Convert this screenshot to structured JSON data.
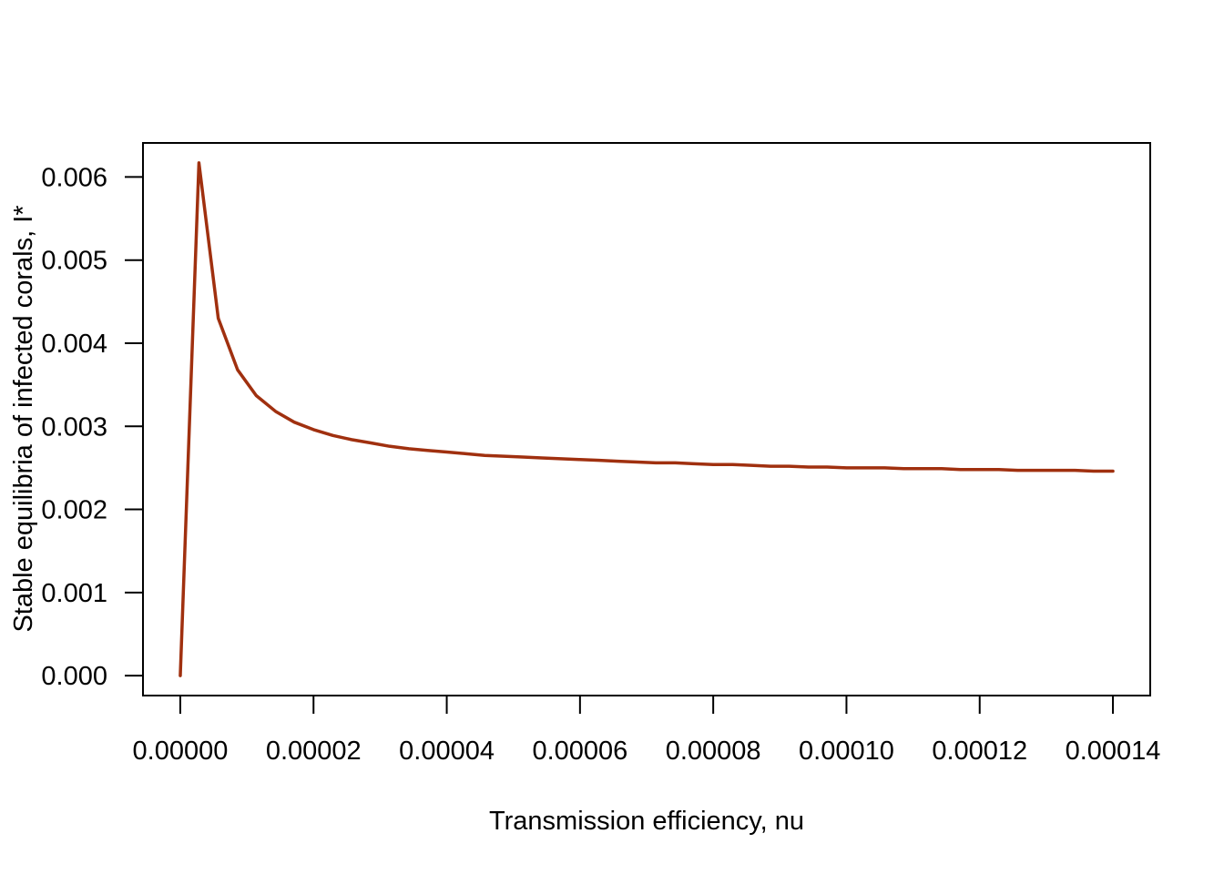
{
  "chart_data": {
    "type": "line",
    "title": "",
    "xlabel": "Transmission efficiency, nu",
    "ylabel": "Stable equilibria of infected corals, I*",
    "xlim": [
      -5.6e-06,
      0.0001456
    ],
    "ylim": [
      -0.00024,
      0.00641
    ],
    "x_ticks": [
      0,
      2e-05,
      4e-05,
      6e-05,
      8e-05,
      0.0001,
      0.00012,
      0.00014
    ],
    "x_tick_labels": [
      "0.00000",
      "0.00002",
      "0.00004",
      "0.00006",
      "0.00008",
      "0.00010",
      "0.00012",
      "0.00014"
    ],
    "y_ticks": [
      0,
      0.001,
      0.002,
      0.003,
      0.004,
      0.005,
      0.006
    ],
    "y_tick_labels": [
      "0.000",
      "0.001",
      "0.002",
      "0.003",
      "0.004",
      "0.005",
      "0.006"
    ],
    "grid": false,
    "legend": "none",
    "series": [
      {
        "color": "#a0300f",
        "x": [
          0,
          2.8e-06,
          5.7e-06,
          8.6e-06,
          1.14e-05,
          1.43e-05,
          1.71e-05,
          2e-05,
          2.29e-05,
          2.57e-05,
          2.86e-05,
          3.14e-05,
          3.43e-05,
          3.71e-05,
          4e-05,
          4.29e-05,
          4.57e-05,
          4.86e-05,
          5.14e-05,
          5.43e-05,
          5.71e-05,
          6e-05,
          6.29e-05,
          6.57e-05,
          6.86e-05,
          7.14e-05,
          7.43e-05,
          7.71e-05,
          8e-05,
          8.29e-05,
          8.57e-05,
          8.86e-05,
          9.14e-05,
          9.43e-05,
          9.71e-05,
          0.0001,
          0.0001029,
          0.0001057,
          0.0001086,
          0.0001114,
          0.0001143,
          0.0001171,
          0.00012,
          0.0001229,
          0.0001257,
          0.0001286,
          0.0001314,
          0.0001343,
          0.0001371,
          0.00014
        ],
        "y": [
          0,
          0.00617,
          0.0043,
          0.00368,
          0.00337,
          0.00318,
          0.00305,
          0.00296,
          0.00289,
          0.00284,
          0.0028,
          0.00276,
          0.00273,
          0.00271,
          0.00269,
          0.00267,
          0.00265,
          0.00264,
          0.00263,
          0.00262,
          0.00261,
          0.0026,
          0.00259,
          0.00258,
          0.00257,
          0.00256,
          0.00256,
          0.00255,
          0.00254,
          0.00254,
          0.00253,
          0.00252,
          0.00252,
          0.00251,
          0.00251,
          0.0025,
          0.0025,
          0.0025,
          0.00249,
          0.00249,
          0.00249,
          0.00248,
          0.00248,
          0.00248,
          0.00247,
          0.00247,
          0.00247,
          0.00247,
          0.00246,
          0.00246
        ]
      }
    ]
  }
}
